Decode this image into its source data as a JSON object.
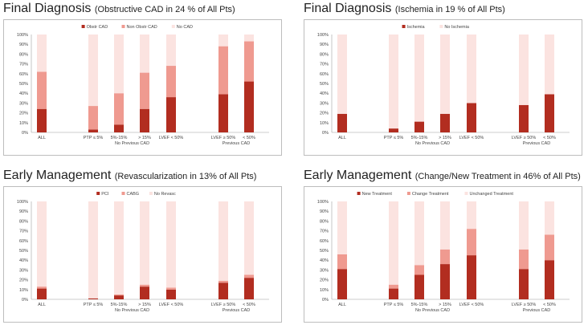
{
  "colors": {
    "dark": "#b22d20",
    "mid": "#ef9a90",
    "light": "#fbe3e0",
    "axis": "#9e9e9e",
    "text": "#444444"
  },
  "quadrants": [
    {
      "title": "Final Diagnosis",
      "subtitle": "(Obstructive CAD in 24 % of All Pts)"
    },
    {
      "title": "Final Diagnosis",
      "subtitle": "(Ischemia in 19 % of All Pts)"
    },
    {
      "title": "Early Management",
      "subtitle": "(Revascularization in 13% of All Pts)"
    },
    {
      "title": "Early Management",
      "subtitle": "(Change/New Treatment in 46% of All Pts)"
    }
  ],
  "chart_data": [
    {
      "type": "bar",
      "stacked": true,
      "ylim": [
        0,
        100
      ],
      "yticks": [
        "0%",
        "10%",
        "20%",
        "30%",
        "40%",
        "50%",
        "60%",
        "70%",
        "80%",
        "90%",
        "100%"
      ],
      "categories": [
        "ALL",
        "PTP ≤ 5%",
        "5%-15%",
        "> 15%",
        "LVEF < 50%",
        "LVEF ≥ 50%",
        "< 50%"
      ],
      "groups": [
        {
          "label": "No Previous CAD"
        },
        {
          "label": "Previous CAD"
        }
      ],
      "legend": "top-center",
      "series": [
        {
          "name": "Obstr CAD",
          "values": [
            24,
            3,
            8,
            24,
            36,
            39,
            52
          ]
        },
        {
          "name": "Non Obstr CAD",
          "values": [
            38,
            24,
            32,
            37,
            32,
            49,
            41
          ]
        },
        {
          "name": "No CAD",
          "values": [
            38,
            73,
            60,
            39,
            32,
            12,
            7
          ]
        }
      ]
    },
    {
      "type": "bar",
      "stacked": true,
      "ylim": [
        0,
        100
      ],
      "yticks": [
        "0%",
        "10%",
        "20%",
        "30%",
        "40%",
        "50%",
        "60%",
        "70%",
        "80%",
        "90%",
        "100%"
      ],
      "categories": [
        "ALL",
        "PTP ≤ 5%",
        "5%-15%",
        "> 15%",
        "LVEF < 50%",
        "LVEF ≥ 50%",
        "< 50%"
      ],
      "groups": [
        {
          "label": "No Previous CAD"
        },
        {
          "label": "Previous CAD"
        }
      ],
      "legend": "top-center",
      "series": [
        {
          "name": "Ischemia",
          "values": [
            19,
            4,
            11,
            19,
            30,
            28,
            39
          ]
        },
        {
          "name": "No Ischemia",
          "values": [
            81,
            96,
            89,
            81,
            70,
            72,
            61
          ]
        }
      ]
    },
    {
      "type": "bar",
      "stacked": true,
      "ylim": [
        0,
        100
      ],
      "yticks": [
        "0%",
        "10%",
        "20%",
        "30%",
        "40%",
        "50%",
        "60%",
        "70%",
        "80%",
        "90%",
        "100%"
      ],
      "categories": [
        "ALL",
        "PTP ≤ 5%",
        "5%-15%",
        "> 15%",
        "LVEF < 50%",
        "LVEF ≥ 50%",
        "< 50%"
      ],
      "groups": [
        {
          "label": "No Previous CAD"
        },
        {
          "label": "Previous CAD"
        }
      ],
      "legend": "top-center",
      "series": [
        {
          "name": "PCI",
          "values": [
            11,
            1,
            4,
            13,
            10,
            17,
            22
          ]
        },
        {
          "name": "CABG",
          "values": [
            2,
            0,
            1,
            2,
            2,
            2,
            3
          ]
        },
        {
          "name": "No Revasc",
          "values": [
            87,
            99,
            95,
            85,
            88,
            81,
            75
          ]
        }
      ]
    },
    {
      "type": "bar",
      "stacked": true,
      "ylim": [
        0,
        100
      ],
      "yticks": [
        "0%",
        "10%",
        "20%",
        "30%",
        "40%",
        "50%",
        "60%",
        "70%",
        "80%",
        "90%",
        "100%"
      ],
      "categories": [
        "ALL",
        "PTP ≤ 5%",
        "5%-15%",
        "> 15%",
        "LVEF < 50%",
        "LVEF ≥ 50%",
        "< 50%"
      ],
      "groups": [
        {
          "label": "No Previous CAD"
        },
        {
          "label": "Previous CAD"
        }
      ],
      "legend": "top-center",
      "series": [
        {
          "name": "New Treatment",
          "values": [
            31,
            11,
            25,
            36,
            45,
            31,
            40
          ]
        },
        {
          "name": "Change Treatment",
          "values": [
            15,
            4,
            10,
            15,
            27,
            20,
            26
          ]
        },
        {
          "name": "Unchanged Treatment",
          "values": [
            54,
            85,
            65,
            49,
            28,
            49,
            34
          ]
        }
      ]
    }
  ]
}
